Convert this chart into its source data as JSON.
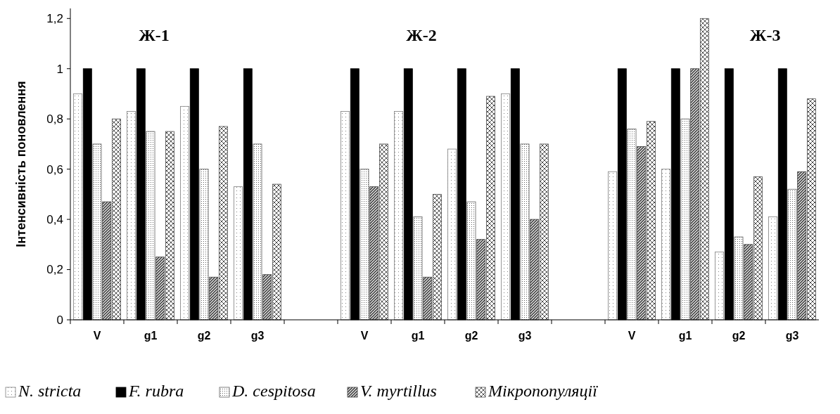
{
  "chart_data": {
    "type": "bar",
    "ylabel": "Інтенсивність поновлення",
    "categories": [
      "V",
      "g1",
      "g2",
      "g3",
      null,
      "V",
      "g1",
      "g2",
      "g3",
      null,
      "V",
      "g1",
      "g2",
      "g3"
    ],
    "series": [
      {
        "name": "N. stricta",
        "color": "#7f7f7f",
        "values": [
          0.9,
          0.83,
          0.85,
          0.53,
          null,
          0.83,
          0.83,
          0.68,
          0.9,
          null,
          0.59,
          0.6,
          0.27,
          0.41
        ]
      },
      {
        "name": "F. rubra",
        "color": "#000000",
        "values": [
          1,
          1,
          1,
          1,
          null,
          1,
          1,
          1,
          1,
          null,
          1,
          1,
          1,
          1
        ]
      },
      {
        "name": "D. cespitosa",
        "color": "#5f5f5f",
        "values": [
          0.7,
          0.75,
          0.6,
          0.7,
          null,
          0.6,
          0.41,
          0.47,
          0.7,
          null,
          0.76,
          0.8,
          0.33,
          0.52
        ]
      },
      {
        "name": "V. myrtillus",
        "color": "#3f3f3f",
        "values": [
          0.47,
          0.25,
          0.17,
          0.18,
          null,
          0.53,
          0.17,
          0.32,
          0.4,
          null,
          0.69,
          1,
          0.3,
          0.59
        ]
      },
      {
        "name": "Мікропопуляції",
        "color": "#4f4f4f",
        "values": [
          0.8,
          0.75,
          0.77,
          0.54,
          null,
          0.7,
          0.5,
          0.89,
          0.7,
          null,
          0.79,
          1.2,
          0.57,
          0.88
        ]
      }
    ],
    "annotations": [
      "Ж-1",
      "Ж-2",
      "Ж-3"
    ],
    "ylim": [
      0,
      1.24
    ],
    "yticks": [
      0,
      {
        "value": 0.2,
        "label": "0,2"
      },
      {
        "value": 0.4,
        "label": "0,4"
      },
      {
        "value": 0.6,
        "label": "0,6"
      },
      {
        "value": 0.8,
        "label": "0,8"
      },
      1,
      {
        "value": 1.2,
        "label": "1,2"
      }
    ],
    "legend": "bottom"
  }
}
